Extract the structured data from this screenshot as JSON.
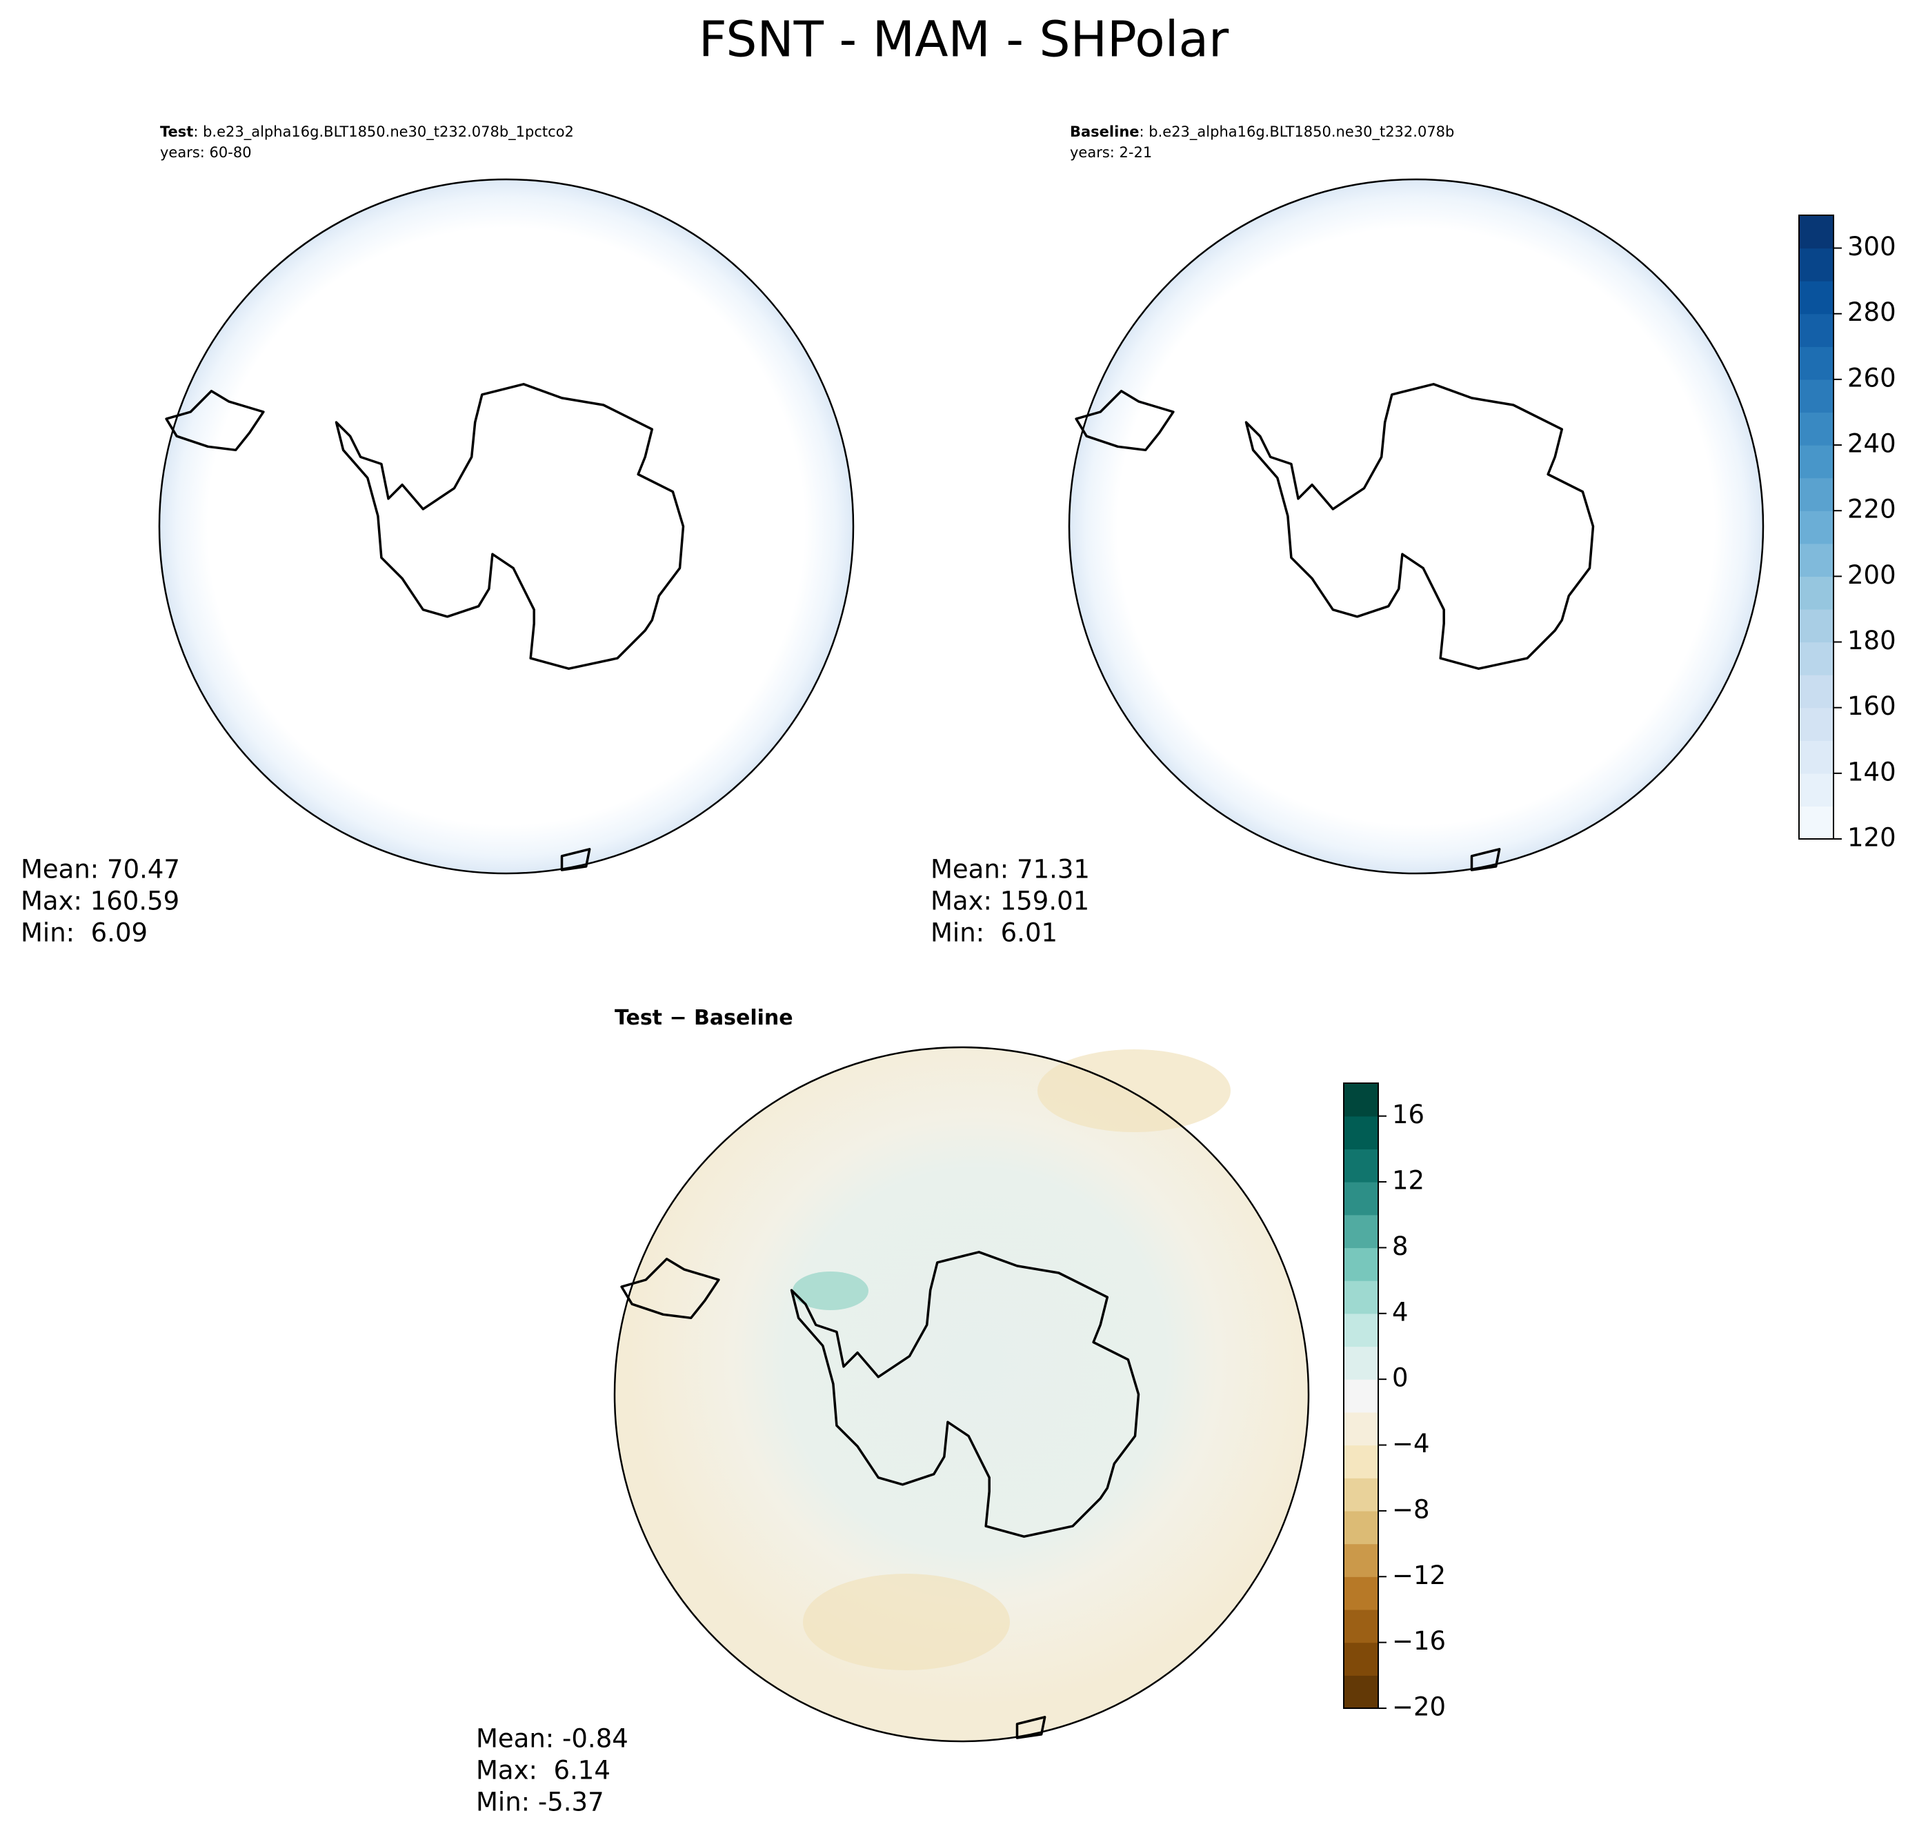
{
  "title": "FSNT - MAM - SHPolar",
  "chart_data": [
    {
      "type": "map",
      "title": "Test",
      "subtitle": ": b.e23_alpha16g.BLT1850.ne30_t232.078b_1pctco2",
      "years": "years: 60-80",
      "stats": [
        "Mean: 70.47",
        "Max: 160.59",
        "Min:  6.09"
      ]
    },
    {
      "type": "map",
      "title": "Baseline",
      "subtitle": ": b.e23_alpha16g.BLT1850.ne30_t232.078b",
      "years": "years: 2-21",
      "stats": [
        "Mean: 71.31",
        "Max: 159.01",
        "Min:  6.01"
      ],
      "colorbar": {
        "ylim": [
          120,
          310
        ],
        "yticks": [
          120,
          140,
          160,
          180,
          200,
          220,
          240,
          260,
          280,
          300
        ],
        "colors": [
          "#f7fbff",
          "#deebf7",
          "#c6dbef",
          "#9ecae1",
          "#6baed6",
          "#4292c6",
          "#2171b5",
          "#08519c",
          "#08306b"
        ]
      }
    },
    {
      "type": "map",
      "title": "Test − Baseline",
      "stats": [
        "Mean: -0.84",
        "Max:  6.14",
        "Min: -5.37"
      ],
      "colorbar": {
        "ylim": [
          -20,
          18
        ],
        "yticks": [
          {
            "value": -20,
            "label": "−20"
          },
          {
            "value": -16,
            "label": "−16"
          },
          {
            "value": -12,
            "label": "−12"
          },
          {
            "value": -8,
            "label": "−8"
          },
          {
            "value": -4,
            "label": "−4"
          },
          0,
          4,
          8,
          12,
          16
        ],
        "colors": [
          "#543005",
          "#8c510a",
          "#bf812d",
          "#dfc27d",
          "#f6e8c3",
          "#f5f5f5",
          "#c7eae5",
          "#80cdc1",
          "#35978f",
          "#01665e",
          "#003c30"
        ]
      }
    }
  ]
}
